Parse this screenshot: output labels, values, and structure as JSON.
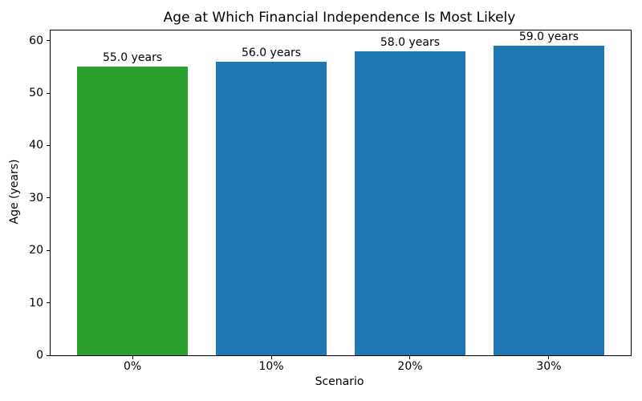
{
  "figure": {
    "background": "#ffffff",
    "axis_color": "#000000",
    "text_color": "#000000"
  },
  "chart_data": {
    "type": "bar",
    "title": "Age at Which Financial Independence Is Most Likely",
    "xlabel": "Scenario",
    "ylabel": "Age (years)",
    "categories": [
      "0%",
      "10%",
      "20%",
      "30%"
    ],
    "values": [
      55.0,
      56.0,
      58.0,
      59.0
    ],
    "bar_labels": [
      "55.0 years",
      "56.0 years",
      "58.0 years",
      "59.0 years"
    ],
    "bar_colors": [
      "#2ca02c",
      "#1f77b4",
      "#1f77b4",
      "#1f77b4"
    ],
    "yticks": [
      0,
      10,
      20,
      30,
      40,
      50,
      60
    ],
    "ylim": [
      0,
      61.95
    ],
    "xlim": [
      -0.59,
      3.59
    ],
    "bar_width": 0.8,
    "grid": false,
    "legend_position": "none"
  }
}
